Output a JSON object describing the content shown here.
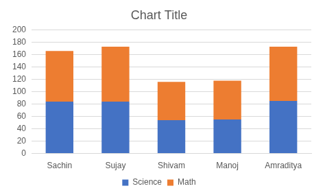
{
  "chart_data": {
    "type": "bar",
    "title": "Chart Title",
    "categories": [
      "Sachin",
      "Sujay",
      "Shivam",
      "Manoj",
      "Amraditya"
    ],
    "series": [
      {
        "name": "Science",
        "color": "#4472c4",
        "values": [
          84,
          84,
          54,
          55,
          85
        ]
      },
      {
        "name": "Math",
        "color": "#ed7d31",
        "values": [
          82,
          89,
          62,
          63,
          88
        ]
      }
    ],
    "stacked": true,
    "ylim": [
      0,
      200
    ],
    "yticks": [
      0,
      20,
      40,
      60,
      80,
      100,
      120,
      140,
      160,
      180,
      200
    ],
    "grid": true,
    "legend": "bottom"
  }
}
